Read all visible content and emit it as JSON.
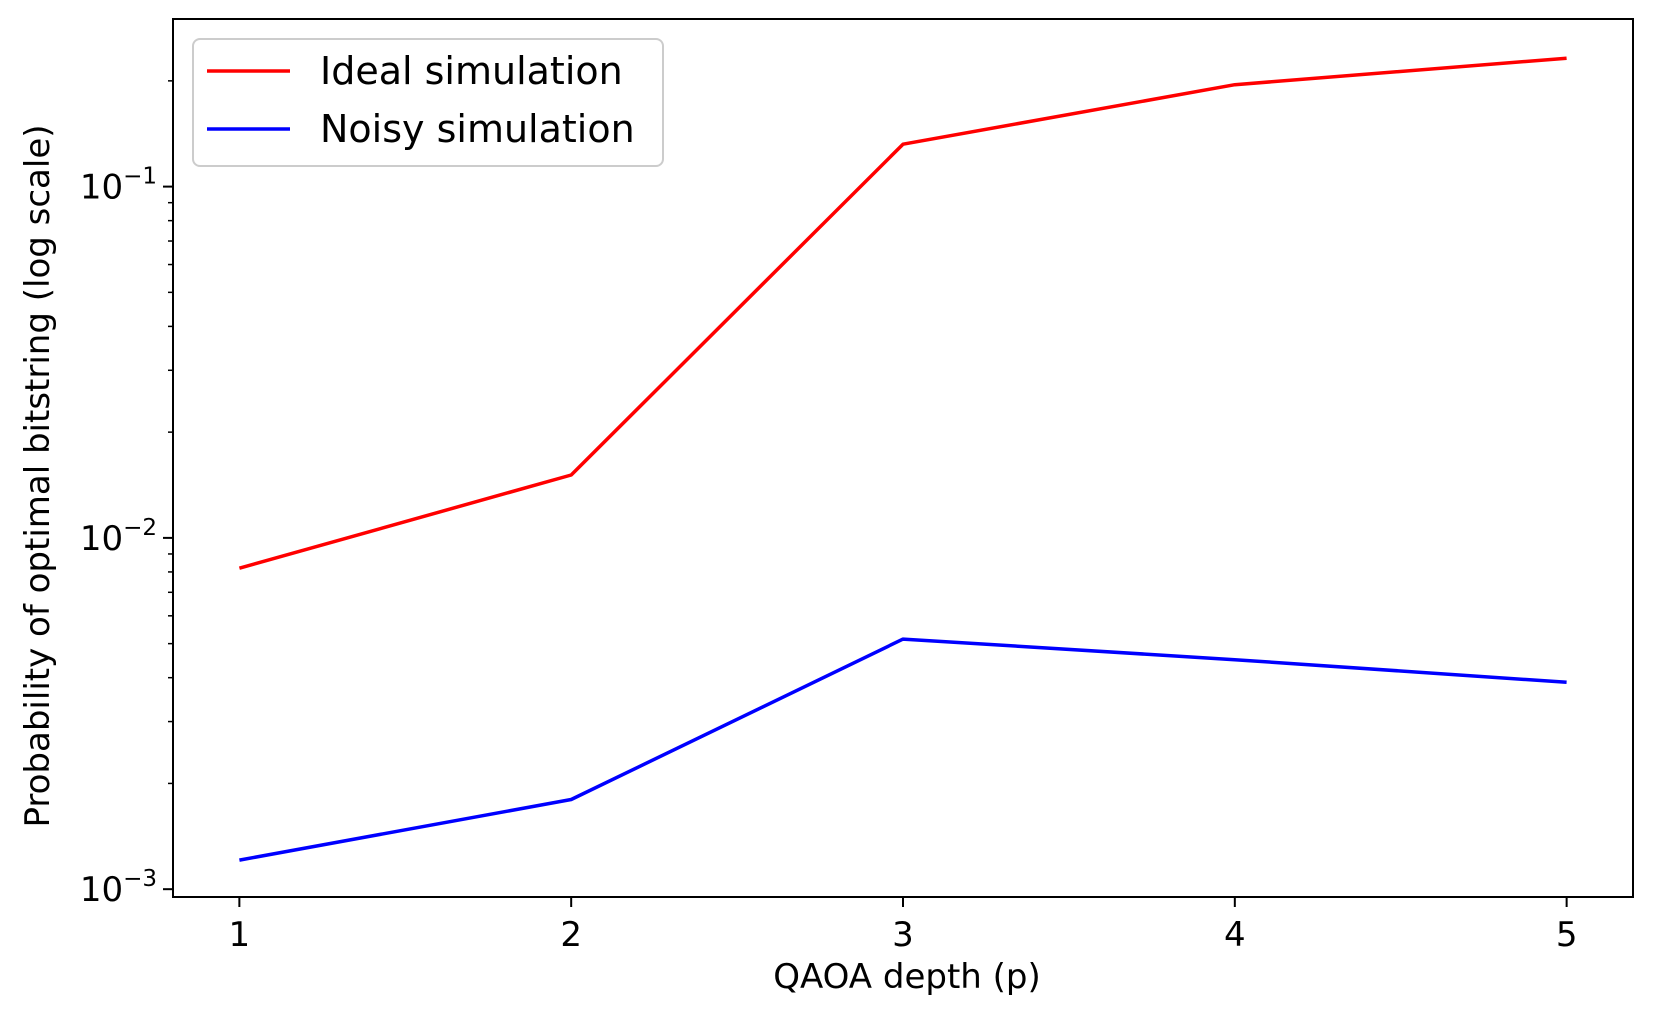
{
  "chart_data": {
    "type": "line",
    "title": "",
    "xlabel": "QAOA depth (p)",
    "ylabel": "Probability of optimal bitstring (log scale)",
    "yscale": "log",
    "x": [
      1,
      2,
      3,
      4,
      5
    ],
    "xlim": [
      0.8,
      5.2
    ],
    "ylim": [
      0.00095,
      0.3
    ],
    "xticks": [
      1,
      2,
      3,
      4,
      5
    ],
    "yticks": [
      0.001,
      0.01,
      0.1
    ],
    "ytick_labels": [
      {
        "base": "10",
        "exp": "−3"
      },
      {
        "base": "10",
        "exp": "−2"
      },
      {
        "base": "10",
        "exp": "−1"
      }
    ],
    "grid": false,
    "legend_position": "top-left",
    "series": [
      {
        "name": "Ideal simulation",
        "color": "#ff0000",
        "values": [
          0.0082,
          0.0151,
          0.132,
          0.195,
          0.232
        ]
      },
      {
        "name": "Noisy simulation",
        "color": "#0000ff",
        "values": [
          0.00121,
          0.0018,
          0.00515,
          0.0045,
          0.00388
        ]
      }
    ]
  }
}
